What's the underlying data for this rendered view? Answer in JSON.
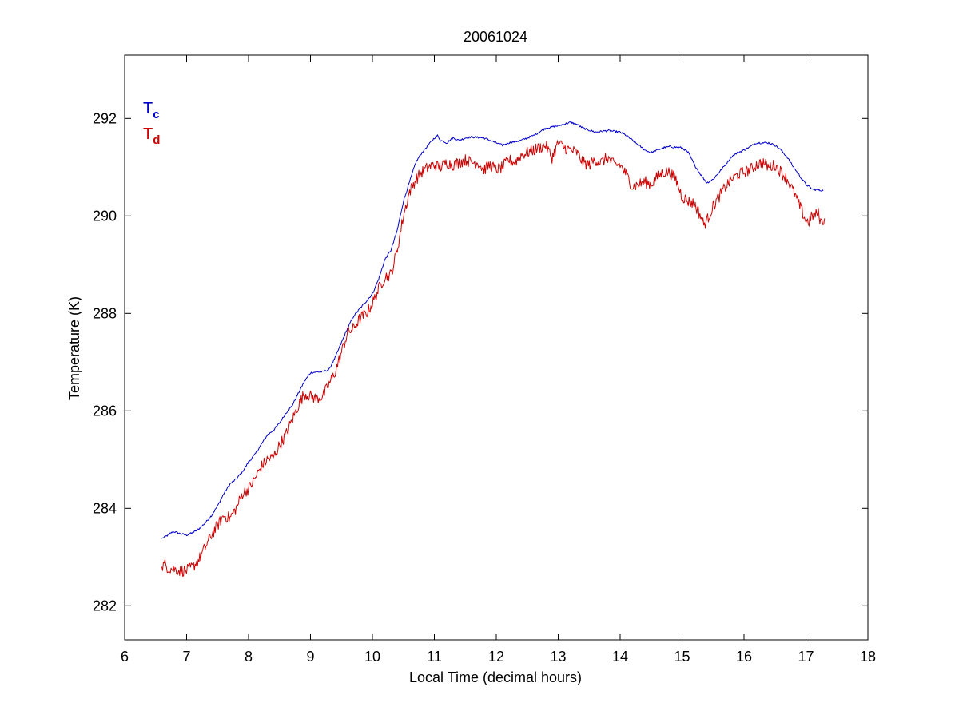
{
  "chart_data": {
    "type": "line",
    "title": "20061024",
    "xlabel": "Local Time (decimal hours)",
    "ylabel": "Temperature (K)",
    "xlim": [
      6,
      18
    ],
    "ylim": [
      281.3,
      293.3
    ],
    "xticks": [
      6,
      7,
      8,
      9,
      10,
      11,
      12,
      13,
      14,
      15,
      16,
      17,
      18
    ],
    "yticks": [
      282,
      284,
      286,
      288,
      290,
      292
    ],
    "grid": false,
    "legend": {
      "placement": "top-left",
      "entries": [
        {
          "main": "T",
          "sub": "c",
          "color": "#0000cc"
        },
        {
          "main": "T",
          "sub": "d",
          "color": "#cc0000"
        }
      ]
    },
    "series": [
      {
        "name": "Tc",
        "color": "#0000cc",
        "noise": 0.02,
        "points": [
          [
            6.6,
            283.38
          ],
          [
            6.7,
            283.45
          ],
          [
            6.75,
            283.5
          ],
          [
            6.8,
            283.52
          ],
          [
            6.9,
            283.48
          ],
          [
            7.0,
            283.45
          ],
          [
            7.1,
            283.5
          ],
          [
            7.2,
            283.58
          ],
          [
            7.3,
            283.7
          ],
          [
            7.4,
            283.85
          ],
          [
            7.5,
            284.05
          ],
          [
            7.6,
            284.3
          ],
          [
            7.7,
            284.5
          ],
          [
            7.8,
            284.6
          ],
          [
            7.9,
            284.75
          ],
          [
            8.0,
            284.95
          ],
          [
            8.1,
            285.1
          ],
          [
            8.2,
            285.3
          ],
          [
            8.3,
            285.5
          ],
          [
            8.4,
            285.6
          ],
          [
            8.5,
            285.75
          ],
          [
            8.6,
            285.95
          ],
          [
            8.7,
            286.1
          ],
          [
            8.8,
            286.35
          ],
          [
            8.9,
            286.6
          ],
          [
            9.0,
            286.78
          ],
          [
            9.1,
            286.8
          ],
          [
            9.2,
            286.8
          ],
          [
            9.3,
            286.85
          ],
          [
            9.4,
            287.1
          ],
          [
            9.5,
            287.4
          ],
          [
            9.6,
            287.7
          ],
          [
            9.7,
            287.95
          ],
          [
            9.8,
            288.1
          ],
          [
            9.9,
            288.25
          ],
          [
            10.0,
            288.4
          ],
          [
            10.1,
            288.7
          ],
          [
            10.2,
            289.1
          ],
          [
            10.3,
            289.3
          ],
          [
            10.4,
            289.7
          ],
          [
            10.5,
            290.3
          ],
          [
            10.6,
            290.7
          ],
          [
            10.7,
            291.1
          ],
          [
            10.8,
            291.3
          ],
          [
            10.9,
            291.45
          ],
          [
            11.0,
            291.6
          ],
          [
            11.05,
            291.65
          ],
          [
            11.1,
            291.55
          ],
          [
            11.2,
            291.5
          ],
          [
            11.3,
            291.6
          ],
          [
            11.4,
            291.55
          ],
          [
            11.5,
            291.6
          ],
          [
            11.6,
            291.62
          ],
          [
            11.8,
            291.6
          ],
          [
            12.0,
            291.5
          ],
          [
            12.1,
            291.45
          ],
          [
            12.2,
            291.5
          ],
          [
            12.4,
            291.55
          ],
          [
            12.6,
            291.65
          ],
          [
            12.8,
            291.8
          ],
          [
            13.0,
            291.85
          ],
          [
            13.2,
            291.92
          ],
          [
            13.3,
            291.88
          ],
          [
            13.4,
            291.8
          ],
          [
            13.6,
            291.72
          ],
          [
            13.8,
            291.75
          ],
          [
            14.0,
            291.72
          ],
          [
            14.1,
            291.65
          ],
          [
            14.2,
            291.55
          ],
          [
            14.3,
            291.45
          ],
          [
            14.4,
            291.35
          ],
          [
            14.5,
            291.3
          ],
          [
            14.6,
            291.35
          ],
          [
            14.7,
            291.4
          ],
          [
            14.8,
            291.42
          ],
          [
            15.0,
            291.4
          ],
          [
            15.1,
            291.3
          ],
          [
            15.2,
            291.05
          ],
          [
            15.3,
            290.85
          ],
          [
            15.4,
            290.68
          ],
          [
            15.5,
            290.75
          ],
          [
            15.6,
            290.9
          ],
          [
            15.7,
            291.05
          ],
          [
            15.8,
            291.22
          ],
          [
            15.9,
            291.3
          ],
          [
            16.0,
            291.35
          ],
          [
            16.1,
            291.42
          ],
          [
            16.2,
            291.5
          ],
          [
            16.4,
            291.5
          ],
          [
            16.5,
            291.45
          ],
          [
            16.6,
            291.35
          ],
          [
            16.7,
            291.2
          ],
          [
            16.8,
            291.0
          ],
          [
            16.9,
            290.82
          ],
          [
            17.0,
            290.65
          ],
          [
            17.1,
            290.55
          ],
          [
            17.2,
            290.53
          ],
          [
            17.28,
            290.52
          ]
        ]
      },
      {
        "name": "Td",
        "color": "#cc0000",
        "noise": 0.12,
        "points": [
          [
            6.6,
            282.8
          ],
          [
            6.65,
            282.85
          ],
          [
            6.7,
            282.78
          ],
          [
            6.8,
            282.75
          ],
          [
            6.9,
            282.72
          ],
          [
            7.0,
            282.72
          ],
          [
            7.1,
            282.8
          ],
          [
            7.2,
            282.95
          ],
          [
            7.3,
            283.2
          ],
          [
            7.4,
            283.45
          ],
          [
            7.5,
            283.65
          ],
          [
            7.6,
            283.85
          ],
          [
            7.7,
            283.8
          ],
          [
            7.8,
            284.0
          ],
          [
            7.9,
            284.3
          ],
          [
            8.0,
            284.4
          ],
          [
            8.1,
            284.6
          ],
          [
            8.2,
            284.85
          ],
          [
            8.3,
            285.0
          ],
          [
            8.4,
            285.05
          ],
          [
            8.5,
            285.3
          ],
          [
            8.6,
            285.5
          ],
          [
            8.7,
            285.8
          ],
          [
            8.8,
            286.1
          ],
          [
            8.9,
            286.35
          ],
          [
            9.0,
            286.3
          ],
          [
            9.1,
            286.25
          ],
          [
            9.2,
            286.3
          ],
          [
            9.3,
            286.55
          ],
          [
            9.4,
            286.8
          ],
          [
            9.5,
            287.2
          ],
          [
            9.6,
            287.6
          ],
          [
            9.7,
            287.7
          ],
          [
            9.8,
            287.9
          ],
          [
            9.9,
            288.0
          ],
          [
            10.0,
            288.2
          ],
          [
            10.1,
            288.5
          ],
          [
            10.2,
            288.75
          ],
          [
            10.3,
            288.8
          ],
          [
            10.4,
            289.3
          ],
          [
            10.5,
            290.0
          ],
          [
            10.6,
            290.5
          ],
          [
            10.7,
            290.75
          ],
          [
            10.8,
            290.9
          ],
          [
            10.9,
            291.0
          ],
          [
            11.0,
            291.05
          ],
          [
            11.1,
            291.0
          ],
          [
            11.2,
            291.1
          ],
          [
            11.3,
            291.05
          ],
          [
            11.4,
            291.1
          ],
          [
            11.5,
            291.15
          ],
          [
            11.6,
            291.1
          ],
          [
            11.7,
            291.1
          ],
          [
            11.8,
            290.95
          ],
          [
            11.9,
            291.05
          ],
          [
            12.0,
            290.95
          ],
          [
            12.1,
            291.0
          ],
          [
            12.2,
            291.15
          ],
          [
            12.3,
            291.1
          ],
          [
            12.4,
            291.25
          ],
          [
            12.5,
            291.3
          ],
          [
            12.6,
            291.35
          ],
          [
            12.7,
            291.4
          ],
          [
            12.8,
            291.45
          ],
          [
            12.9,
            291.2
          ],
          [
            13.0,
            291.5
          ],
          [
            13.1,
            291.4
          ],
          [
            13.2,
            291.35
          ],
          [
            13.3,
            291.3
          ],
          [
            13.4,
            291.1
          ],
          [
            13.5,
            291.05
          ],
          [
            13.6,
            291.15
          ],
          [
            13.7,
            291.1
          ],
          [
            13.8,
            291.2
          ],
          [
            13.9,
            291.05
          ],
          [
            14.0,
            291.05
          ],
          [
            14.1,
            290.85
          ],
          [
            14.2,
            290.6
          ],
          [
            14.3,
            290.65
          ],
          [
            14.4,
            290.7
          ],
          [
            14.5,
            290.65
          ],
          [
            14.6,
            290.8
          ],
          [
            14.7,
            290.9
          ],
          [
            14.8,
            290.9
          ],
          [
            14.9,
            290.75
          ],
          [
            15.0,
            290.4
          ],
          [
            15.1,
            290.3
          ],
          [
            15.2,
            290.25
          ],
          [
            15.3,
            290.0
          ],
          [
            15.35,
            289.82
          ],
          [
            15.4,
            289.9
          ],
          [
            15.5,
            290.2
          ],
          [
            15.6,
            290.4
          ],
          [
            15.7,
            290.6
          ],
          [
            15.8,
            290.75
          ],
          [
            15.9,
            290.85
          ],
          [
            16.0,
            290.9
          ],
          [
            16.1,
            290.95
          ],
          [
            16.2,
            291.05
          ],
          [
            16.3,
            291.1
          ],
          [
            16.4,
            291.0
          ],
          [
            16.5,
            291.05
          ],
          [
            16.6,
            290.9
          ],
          [
            16.7,
            290.75
          ],
          [
            16.8,
            290.5
          ],
          [
            16.9,
            290.2
          ],
          [
            17.0,
            289.9
          ],
          [
            17.05,
            289.88
          ],
          [
            17.1,
            290.0
          ],
          [
            17.2,
            290.05
          ],
          [
            17.25,
            289.85
          ],
          [
            17.3,
            289.95
          ]
        ]
      }
    ]
  }
}
